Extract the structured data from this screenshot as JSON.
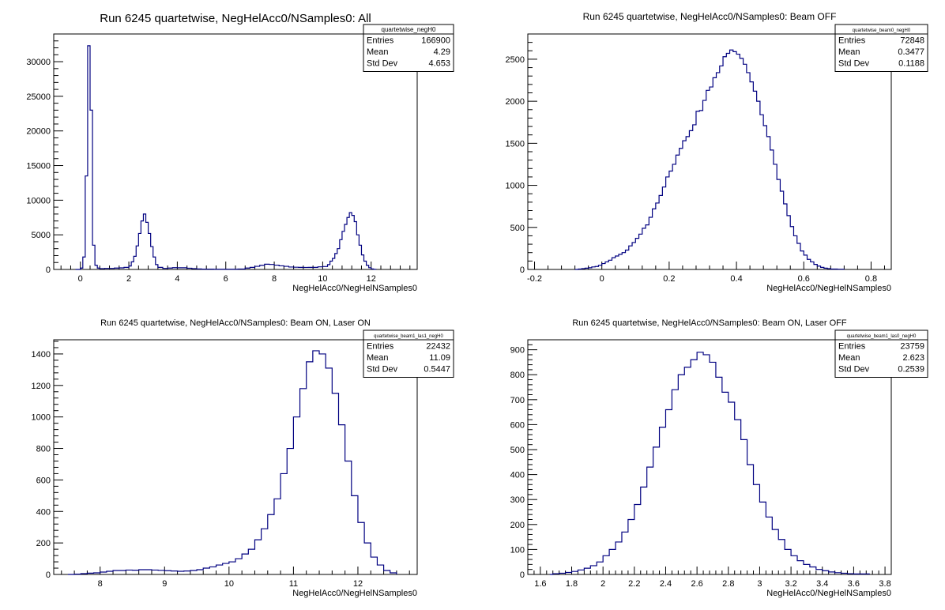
{
  "chart_data": [
    {
      "type": "histogram",
      "title": "Run 6245 quartetwise, NegHelAcc0/NSamples0: All",
      "xlabel": "NegHelAcc0/NegHelNSamples0",
      "ylabel": "",
      "xlim": [
        -1.1,
        13.9
      ],
      "ylim": [
        0,
        34000
      ],
      "xticks": [
        0,
        2,
        4,
        6,
        8,
        10,
        12
      ],
      "yticks": [
        0,
        5000,
        10000,
        15000,
        20000,
        25000,
        30000
      ],
      "stats": {
        "name": "quartetwise_negH0",
        "rows": [
          [
            "Entries",
            "166900"
          ],
          [
            "Mean",
            "4.29"
          ],
          [
            "Std Dev",
            "4.653"
          ]
        ]
      },
      "points": [
        [
          -0.2,
          0
        ],
        [
          -0.1,
          0
        ],
        [
          0.0,
          200
        ],
        [
          0.1,
          1800
        ],
        [
          0.2,
          13500
        ],
        [
          0.3,
          32300
        ],
        [
          0.4,
          23000
        ],
        [
          0.5,
          3500
        ],
        [
          0.6,
          600
        ],
        [
          0.7,
          200
        ],
        [
          0.8,
          120
        ],
        [
          0.9,
          120
        ],
        [
          1.0,
          150
        ],
        [
          1.2,
          150
        ],
        [
          1.4,
          200
        ],
        [
          1.6,
          230
        ],
        [
          1.8,
          300
        ],
        [
          2.0,
          500
        ],
        [
          2.1,
          1100
        ],
        [
          2.2,
          1900
        ],
        [
          2.3,
          3400
        ],
        [
          2.4,
          5200
        ],
        [
          2.5,
          7000
        ],
        [
          2.6,
          8000
        ],
        [
          2.7,
          6800
        ],
        [
          2.8,
          5200
        ],
        [
          2.9,
          3300
        ],
        [
          3.0,
          1800
        ],
        [
          3.1,
          700
        ],
        [
          3.2,
          300
        ],
        [
          3.4,
          150
        ],
        [
          3.6,
          200
        ],
        [
          3.8,
          260
        ],
        [
          4.0,
          240
        ],
        [
          4.2,
          240
        ],
        [
          4.4,
          180
        ],
        [
          4.6,
          120
        ],
        [
          4.8,
          70
        ],
        [
          5.0,
          40
        ],
        [
          5.5,
          30
        ],
        [
          6.0,
          30
        ],
        [
          6.5,
          60
        ],
        [
          6.8,
          200
        ],
        [
          7.0,
          300
        ],
        [
          7.2,
          450
        ],
        [
          7.4,
          600
        ],
        [
          7.6,
          760
        ],
        [
          7.8,
          720
        ],
        [
          8.0,
          620
        ],
        [
          8.2,
          520
        ],
        [
          8.4,
          450
        ],
        [
          8.6,
          350
        ],
        [
          8.8,
          320
        ],
        [
          9.0,
          300
        ],
        [
          9.2,
          290
        ],
        [
          9.4,
          300
        ],
        [
          9.6,
          300
        ],
        [
          9.8,
          380
        ],
        [
          10.0,
          420
        ],
        [
          10.2,
          700
        ],
        [
          10.3,
          1200
        ],
        [
          10.4,
          1600
        ],
        [
          10.5,
          2300
        ],
        [
          10.6,
          3000
        ],
        [
          10.7,
          4300
        ],
        [
          10.8,
          5500
        ],
        [
          10.9,
          6500
        ],
        [
          11.0,
          7500
        ],
        [
          11.1,
          8200
        ],
        [
          11.2,
          7800
        ],
        [
          11.3,
          6900
        ],
        [
          11.4,
          5000
        ],
        [
          11.5,
          3500
        ],
        [
          11.6,
          2100
        ],
        [
          11.7,
          1200
        ],
        [
          11.8,
          600
        ],
        [
          11.9,
          250
        ],
        [
          12.0,
          80
        ],
        [
          12.1,
          20
        ],
        [
          12.2,
          0
        ]
      ]
    },
    {
      "type": "histogram",
      "title": "Run 6245 quartetwise, NegHelAcc0/NSamples0: Beam OFF",
      "xlabel": "NegHelAcc0/NegHelNSamples0",
      "ylabel": "",
      "xlim": [
        -0.22,
        0.86
      ],
      "ylim": [
        0,
        2800
      ],
      "xticks": [
        -0.2,
        0,
        0.2,
        0.4,
        0.6,
        0.8
      ],
      "yticks": [
        0,
        500,
        1000,
        1500,
        2000,
        2500
      ],
      "stats": {
        "name": "quartetwise_beam0_negH0",
        "rows": [
          [
            "Entries",
            "72848"
          ],
          [
            "Mean",
            "0.3477"
          ],
          [
            "Std Dev",
            "0.1188"
          ]
        ]
      },
      "points": [
        [
          -0.08,
          0
        ],
        [
          -0.07,
          5
        ],
        [
          -0.06,
          10
        ],
        [
          -0.05,
          15
        ],
        [
          -0.04,
          20
        ],
        [
          -0.03,
          30
        ],
        [
          -0.02,
          35
        ],
        [
          -0.01,
          50
        ],
        [
          0.0,
          70
        ],
        [
          0.01,
          90
        ],
        [
          0.02,
          110
        ],
        [
          0.03,
          140
        ],
        [
          0.04,
          160
        ],
        [
          0.05,
          180
        ],
        [
          0.06,
          200
        ],
        [
          0.07,
          230
        ],
        [
          0.08,
          280
        ],
        [
          0.09,
          320
        ],
        [
          0.1,
          370
        ],
        [
          0.11,
          420
        ],
        [
          0.12,
          490
        ],
        [
          0.13,
          530
        ],
        [
          0.14,
          620
        ],
        [
          0.15,
          720
        ],
        [
          0.16,
          790
        ],
        [
          0.17,
          880
        ],
        [
          0.18,
          980
        ],
        [
          0.19,
          1100
        ],
        [
          0.2,
          1170
        ],
        [
          0.21,
          1250
        ],
        [
          0.22,
          1360
        ],
        [
          0.23,
          1440
        ],
        [
          0.24,
          1530
        ],
        [
          0.25,
          1580
        ],
        [
          0.26,
          1650
        ],
        [
          0.27,
          1720
        ],
        [
          0.28,
          1880
        ],
        [
          0.29,
          1890
        ],
        [
          0.3,
          2010
        ],
        [
          0.31,
          2130
        ],
        [
          0.32,
          2170
        ],
        [
          0.33,
          2280
        ],
        [
          0.34,
          2340
        ],
        [
          0.35,
          2420
        ],
        [
          0.36,
          2530
        ],
        [
          0.37,
          2570
        ],
        [
          0.38,
          2610
        ],
        [
          0.39,
          2590
        ],
        [
          0.4,
          2560
        ],
        [
          0.41,
          2510
        ],
        [
          0.42,
          2440
        ],
        [
          0.43,
          2340
        ],
        [
          0.44,
          2230
        ],
        [
          0.45,
          2120
        ],
        [
          0.46,
          2000
        ],
        [
          0.47,
          1840
        ],
        [
          0.48,
          1710
        ],
        [
          0.49,
          1580
        ],
        [
          0.5,
          1420
        ],
        [
          0.51,
          1250
        ],
        [
          0.52,
          1070
        ],
        [
          0.53,
          930
        ],
        [
          0.54,
          780
        ],
        [
          0.55,
          640
        ],
        [
          0.56,
          510
        ],
        [
          0.57,
          400
        ],
        [
          0.58,
          310
        ],
        [
          0.59,
          220
        ],
        [
          0.6,
          170
        ],
        [
          0.61,
          120
        ],
        [
          0.62,
          90
        ],
        [
          0.63,
          60
        ],
        [
          0.64,
          40
        ],
        [
          0.65,
          25
        ],
        [
          0.66,
          15
        ],
        [
          0.67,
          10
        ],
        [
          0.68,
          5
        ],
        [
          0.7,
          3
        ],
        [
          0.72,
          0
        ]
      ]
    },
    {
      "type": "histogram",
      "title": "Run 6245 quartetwise, NegHelAcc0/NSamples0: Beam ON, Laser ON",
      "xlabel": "NegHelAcc0/NegHelNSamples0",
      "ylabel": "",
      "xlim": [
        7.28,
        12.92
      ],
      "ylim": [
        0,
        1490
      ],
      "xticks": [
        8,
        9,
        10,
        11,
        12
      ],
      "yticks": [
        0,
        200,
        400,
        600,
        800,
        1000,
        1200,
        1400
      ],
      "stats": {
        "name": "quartetwise_beam1_las1_negH0",
        "rows": [
          [
            "Entries",
            "22432"
          ],
          [
            "Mean",
            "11.09"
          ],
          [
            "Std Dev",
            "0.5447"
          ]
        ]
      },
      "points": [
        [
          7.5,
          0
        ],
        [
          7.6,
          2
        ],
        [
          7.7,
          5
        ],
        [
          7.8,
          8
        ],
        [
          7.9,
          10
        ],
        [
          8.0,
          15
        ],
        [
          8.1,
          20
        ],
        [
          8.2,
          25
        ],
        [
          8.3,
          25
        ],
        [
          8.4,
          28
        ],
        [
          8.5,
          27
        ],
        [
          8.6,
          30
        ],
        [
          8.7,
          30
        ],
        [
          8.8,
          28
        ],
        [
          8.9,
          26
        ],
        [
          9.0,
          24
        ],
        [
          9.1,
          22
        ],
        [
          9.2,
          20
        ],
        [
          9.3,
          22
        ],
        [
          9.4,
          25
        ],
        [
          9.5,
          30
        ],
        [
          9.6,
          40
        ],
        [
          9.7,
          48
        ],
        [
          9.8,
          60
        ],
        [
          9.9,
          70
        ],
        [
          10.0,
          80
        ],
        [
          10.1,
          100
        ],
        [
          10.2,
          130
        ],
        [
          10.3,
          160
        ],
        [
          10.4,
          220
        ],
        [
          10.5,
          290
        ],
        [
          10.6,
          380
        ],
        [
          10.7,
          480
        ],
        [
          10.8,
          640
        ],
        [
          10.9,
          800
        ],
        [
          11.0,
          1000
        ],
        [
          11.1,
          1180
        ],
        [
          11.2,
          1350
        ],
        [
          11.3,
          1420
        ],
        [
          11.4,
          1400
        ],
        [
          11.5,
          1310
        ],
        [
          11.6,
          1150
        ],
        [
          11.7,
          950
        ],
        [
          11.8,
          720
        ],
        [
          11.9,
          500
        ],
        [
          12.0,
          330
        ],
        [
          12.1,
          200
        ],
        [
          12.2,
          110
        ],
        [
          12.3,
          60
        ],
        [
          12.4,
          25
        ],
        [
          12.5,
          10
        ],
        [
          12.6,
          0
        ]
      ]
    },
    {
      "type": "histogram",
      "title": "Run 6245 quartetwise, NegHelAcc0/NSamples0: Beam ON, Laser OFF",
      "xlabel": "NegHelAcc0/NegHelNSamples0",
      "ylabel": "",
      "xlim": [
        1.52,
        3.84
      ],
      "ylim": [
        0,
        940
      ],
      "xticks": [
        1.6,
        1.8,
        2,
        2.2,
        2.4,
        2.6,
        2.8,
        3,
        3.2,
        3.4,
        3.6,
        3.8
      ],
      "yticks": [
        0,
        100,
        200,
        300,
        400,
        500,
        600,
        700,
        800,
        900
      ],
      "stats": {
        "name": "quartetwise_beam1_las0_negH0",
        "rows": [
          [
            "Entries",
            "23759"
          ],
          [
            "Mean",
            "2.623"
          ],
          [
            "Std Dev",
            "0.2539"
          ]
        ]
      },
      "points": [
        [
          1.66,
          0
        ],
        [
          1.68,
          3
        ],
        [
          1.72,
          5
        ],
        [
          1.76,
          8
        ],
        [
          1.8,
          12
        ],
        [
          1.84,
          18
        ],
        [
          1.88,
          25
        ],
        [
          1.92,
          35
        ],
        [
          1.96,
          50
        ],
        [
          2.0,
          75
        ],
        [
          2.04,
          100
        ],
        [
          2.08,
          130
        ],
        [
          2.12,
          170
        ],
        [
          2.16,
          220
        ],
        [
          2.2,
          280
        ],
        [
          2.24,
          350
        ],
        [
          2.28,
          430
        ],
        [
          2.32,
          510
        ],
        [
          2.36,
          590
        ],
        [
          2.4,
          660
        ],
        [
          2.44,
          740
        ],
        [
          2.48,
          800
        ],
        [
          2.52,
          830
        ],
        [
          2.56,
          860
        ],
        [
          2.6,
          890
        ],
        [
          2.64,
          880
        ],
        [
          2.68,
          850
        ],
        [
          2.72,
          790
        ],
        [
          2.76,
          730
        ],
        [
          2.8,
          690
        ],
        [
          2.84,
          620
        ],
        [
          2.88,
          540
        ],
        [
          2.92,
          440
        ],
        [
          2.96,
          360
        ],
        [
          3.0,
          290
        ],
        [
          3.04,
          230
        ],
        [
          3.08,
          180
        ],
        [
          3.12,
          140
        ],
        [
          3.16,
          100
        ],
        [
          3.2,
          75
        ],
        [
          3.24,
          55
        ],
        [
          3.28,
          40
        ],
        [
          3.32,
          30
        ],
        [
          3.36,
          20
        ],
        [
          3.4,
          15
        ],
        [
          3.44,
          10
        ],
        [
          3.48,
          7
        ],
        [
          3.52,
          5
        ],
        [
          3.56,
          3
        ],
        [
          3.6,
          2
        ],
        [
          3.7,
          0
        ]
      ]
    }
  ]
}
